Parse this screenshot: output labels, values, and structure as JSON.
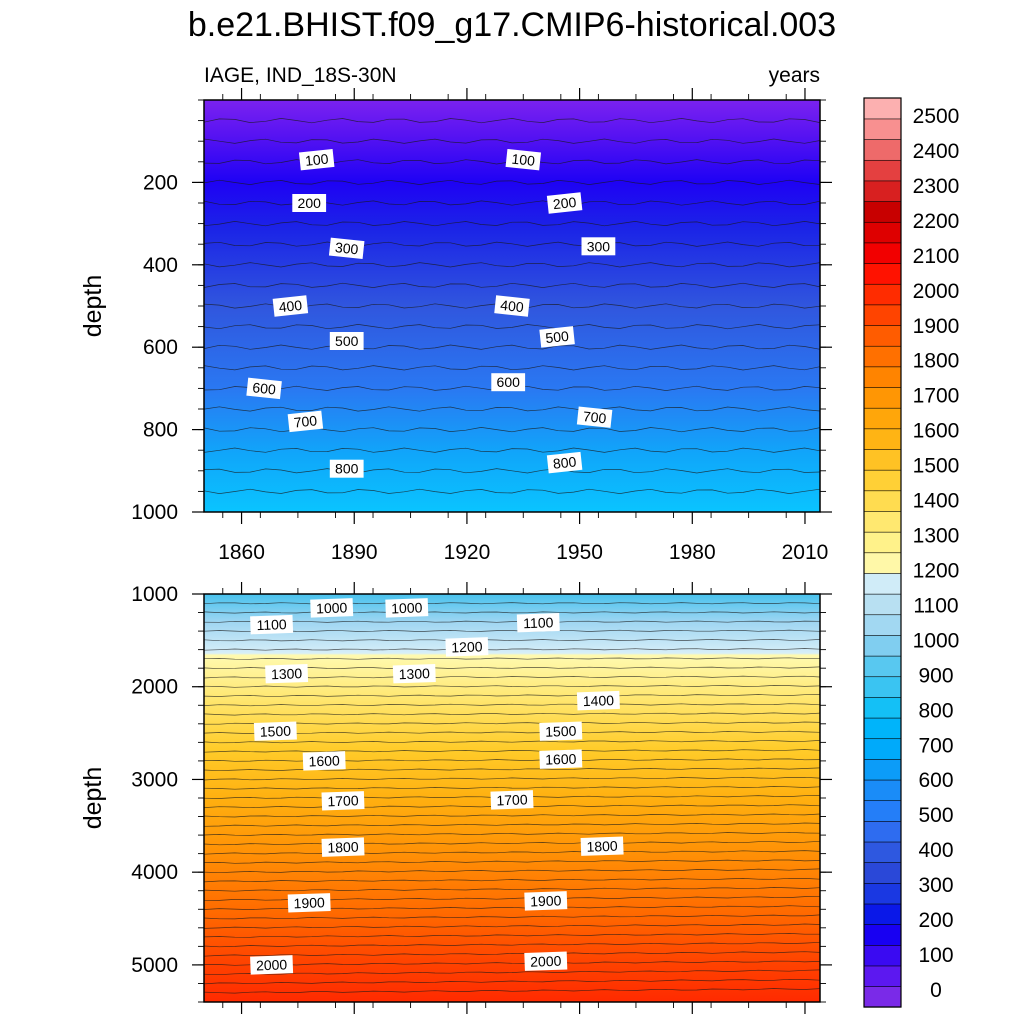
{
  "chart_data": {
    "type": "heatmap",
    "title": "b.e21.BHIST.f09_g17.CMIP6-historical.003",
    "left_subtitle": "IAGE, IND_18S-30N",
    "right_subtitle": "years",
    "ylabel": "depth",
    "x_range": [
      1850,
      2014
    ],
    "x_ticks": [
      "1860",
      "1890",
      "1920",
      "1950",
      "1980",
      "2010"
    ],
    "panels": [
      {
        "name": "upper",
        "ylim": [
          0,
          1000
        ],
        "y_ticks": [
          "200",
          "400",
          "600",
          "800",
          "1000"
        ],
        "contour_labels": [
          {
            "value": "100",
            "year": 1880,
            "depth": 145
          },
          {
            "value": "100",
            "year": 1935,
            "depth": 145
          },
          {
            "value": "200",
            "year": 1878,
            "depth": 250
          },
          {
            "value": "200",
            "year": 1946,
            "depth": 250
          },
          {
            "value": "300",
            "year": 1888,
            "depth": 360
          },
          {
            "value": "300",
            "year": 1955,
            "depth": 355
          },
          {
            "value": "400",
            "year": 1873,
            "depth": 500
          },
          {
            "value": "400",
            "year": 1932,
            "depth": 500
          },
          {
            "value": "500",
            "year": 1888,
            "depth": 585
          },
          {
            "value": "500",
            "year": 1944,
            "depth": 575
          },
          {
            "value": "600",
            "year": 1866,
            "depth": 700
          },
          {
            "value": "600",
            "year": 1931,
            "depth": 685
          },
          {
            "value": "700",
            "year": 1877,
            "depth": 780
          },
          {
            "value": "700",
            "year": 1954,
            "depth": 770
          },
          {
            "value": "800",
            "year": 1888,
            "depth": 895
          },
          {
            "value": "800",
            "year": 1946,
            "depth": 880
          }
        ]
      },
      {
        "name": "lower",
        "ylim": [
          1000,
          5400
        ],
        "y_ticks": [
          "1000",
          "2000",
          "3000",
          "4000",
          "5000"
        ],
        "contour_labels": [
          {
            "value": "1000",
            "year": 1884,
            "depth": 1150
          },
          {
            "value": "1000",
            "year": 1904,
            "depth": 1150
          },
          {
            "value": "1100",
            "year": 1868,
            "depth": 1330
          },
          {
            "value": "1100",
            "year": 1939,
            "depth": 1310
          },
          {
            "value": "1200",
            "year": 1920,
            "depth": 1570
          },
          {
            "value": "1300",
            "year": 1872,
            "depth": 1860
          },
          {
            "value": "1300",
            "year": 1906,
            "depth": 1860
          },
          {
            "value": "1400",
            "year": 1955,
            "depth": 2150
          },
          {
            "value": "1500",
            "year": 1869,
            "depth": 2480
          },
          {
            "value": "1500",
            "year": 1945,
            "depth": 2480
          },
          {
            "value": "1600",
            "year": 1882,
            "depth": 2800
          },
          {
            "value": "1600",
            "year": 1945,
            "depth": 2780
          },
          {
            "value": "1700",
            "year": 1887,
            "depth": 3230
          },
          {
            "value": "1700",
            "year": 1932,
            "depth": 3220
          },
          {
            "value": "1800",
            "year": 1887,
            "depth": 3730
          },
          {
            "value": "1800",
            "year": 1956,
            "depth": 3720
          },
          {
            "value": "1900",
            "year": 1878,
            "depth": 4330
          },
          {
            "value": "1900",
            "year": 1941,
            "depth": 4310
          },
          {
            "value": "2000",
            "year": 1868,
            "depth": 5000
          },
          {
            "value": "2000",
            "year": 1941,
            "depth": 4960
          }
        ]
      }
    ],
    "colorbar": {
      "labels": [
        "0",
        "100",
        "200",
        "300",
        "400",
        "500",
        "600",
        "700",
        "800",
        "900",
        "1000",
        "1100",
        "1200",
        "1300",
        "1400",
        "1500",
        "1600",
        "1700",
        "1800",
        "1900",
        "2000",
        "2100",
        "2200",
        "2300",
        "2400",
        "2500"
      ],
      "colors": [
        "#7a2ae8",
        "#5c18f0",
        "#3a0af2",
        "#1800f2",
        "#0a18e8",
        "#1a38e2",
        "#2a48d8",
        "#2e58e0",
        "#2e6cf0",
        "#247ef8",
        "#1a8cf8",
        "#0c9cf8",
        "#00aafa",
        "#00b4fa",
        "#14c0f6",
        "#3ac4f2",
        "#58c8f0",
        "#80cef0",
        "#a2d8f2",
        "#b8e0f2",
        "#d0ecf8",
        "#fff8a8",
        "#fff28a",
        "#ffe870",
        "#ffdc50",
        "#ffd036",
        "#ffc224",
        "#ffb414",
        "#ffa60a",
        "#ff9604",
        "#ff8400",
        "#ff7000",
        "#ff5c00",
        "#ff4400",
        "#ff2c00",
        "#ff1200",
        "#f20000",
        "#de0000",
        "#c80000",
        "#d82020",
        "#e44040",
        "#ee6a6a",
        "#f89090",
        "#fcb0b0"
      ]
    }
  }
}
